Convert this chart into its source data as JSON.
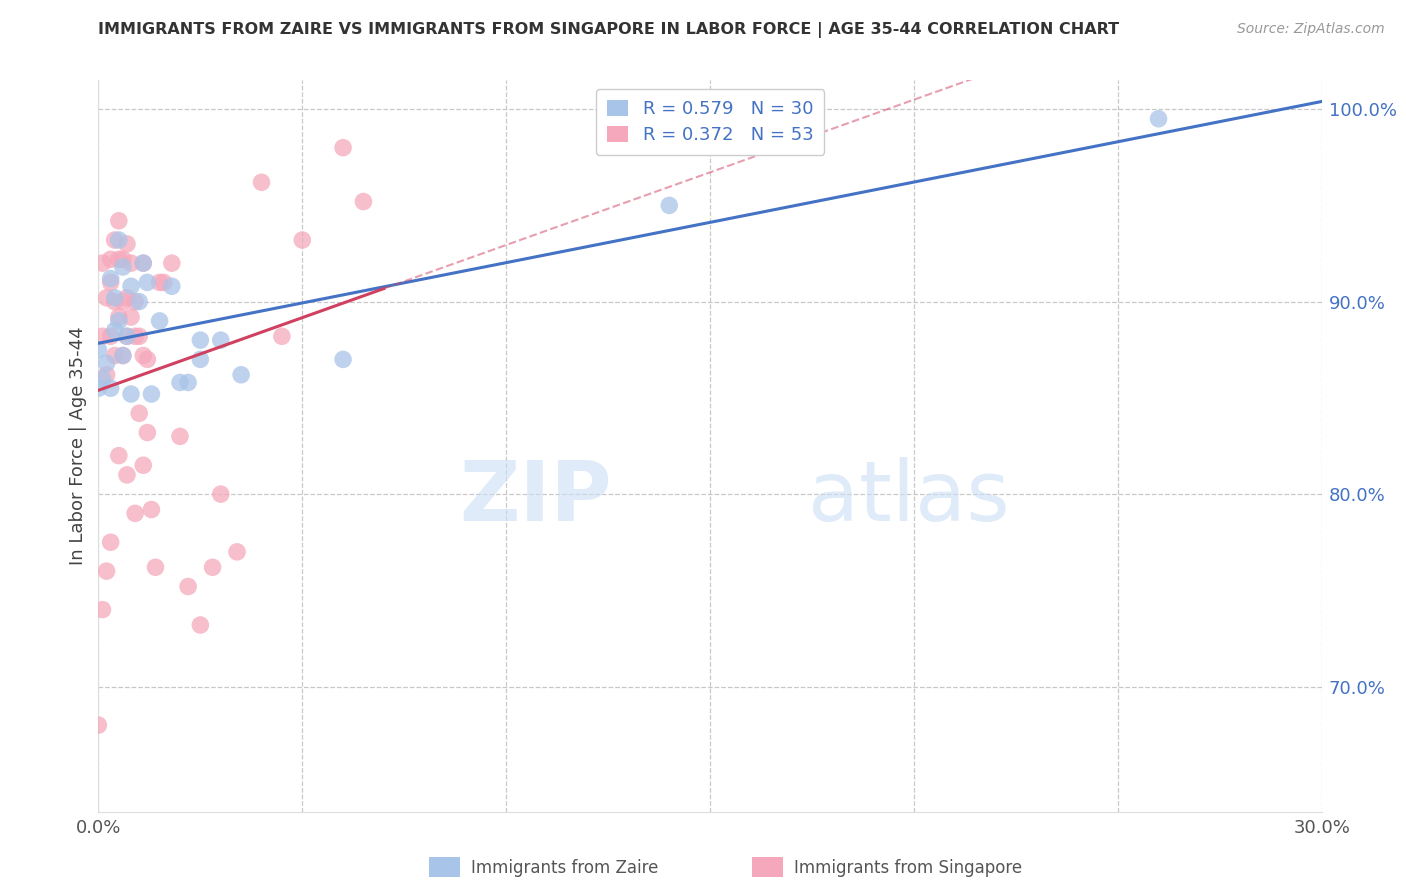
{
  "title": "IMMIGRANTS FROM ZAIRE VS IMMIGRANTS FROM SINGAPORE IN LABOR FORCE | AGE 35-44 CORRELATION CHART",
  "source": "Source: ZipAtlas.com",
  "ylabel": "In Labor Force | Age 35-44",
  "xlim": [
    0.0,
    0.3
  ],
  "ylim": [
    0.635,
    1.015
  ],
  "yticks": [
    0.7,
    0.8,
    0.9,
    1.0
  ],
  "ytick_labels": [
    "70.0%",
    "80.0%",
    "90.0%",
    "100.0%"
  ],
  "xticks": [
    0.0,
    0.05,
    0.1,
    0.15,
    0.2,
    0.25,
    0.3
  ],
  "zaire_R": 0.579,
  "zaire_N": 30,
  "singapore_R": 0.372,
  "singapore_N": 53,
  "zaire_color": "#a8c4e8",
  "singapore_color": "#f5a8bb",
  "trend_zaire_color": "#4472c4",
  "trend_singapore_color": "#d04060",
  "watermark_zip": "ZIP",
  "watermark_atlas": "atlas",
  "legend_label_zaire": "Immigrants from Zaire",
  "legend_label_singapore": "Immigrants from Singapore",
  "zaire_x": [
    0.0,
    0.0,
    0.001,
    0.002,
    0.003,
    0.003,
    0.004,
    0.004,
    0.005,
    0.005,
    0.006,
    0.006,
    0.007,
    0.008,
    0.008,
    0.01,
    0.011,
    0.012,
    0.013,
    0.015,
    0.018,
    0.02,
    0.022,
    0.025,
    0.025,
    0.03,
    0.035,
    0.06,
    0.14,
    0.26
  ],
  "zaire_y": [
    0.855,
    0.875,
    0.86,
    0.868,
    0.855,
    0.912,
    0.885,
    0.902,
    0.89,
    0.932,
    0.872,
    0.918,
    0.882,
    0.908,
    0.852,
    0.9,
    0.92,
    0.91,
    0.852,
    0.89,
    0.908,
    0.858,
    0.858,
    0.87,
    0.88,
    0.88,
    0.862,
    0.87,
    0.95,
    0.995
  ],
  "singapore_x": [
    0.0,
    0.001,
    0.001,
    0.002,
    0.002,
    0.003,
    0.003,
    0.003,
    0.004,
    0.004,
    0.004,
    0.005,
    0.005,
    0.005,
    0.006,
    0.006,
    0.006,
    0.007,
    0.007,
    0.007,
    0.008,
    0.008,
    0.009,
    0.009,
    0.01,
    0.01,
    0.011,
    0.011,
    0.012,
    0.012,
    0.013,
    0.014,
    0.015,
    0.016,
    0.018,
    0.02,
    0.022,
    0.025,
    0.028,
    0.03,
    0.034,
    0.04,
    0.045,
    0.05,
    0.06,
    0.065,
    0.001,
    0.002,
    0.003,
    0.005,
    0.007,
    0.009,
    0.011
  ],
  "singapore_y": [
    0.68,
    0.882,
    0.92,
    0.862,
    0.902,
    0.882,
    0.91,
    0.922,
    0.872,
    0.9,
    0.932,
    0.892,
    0.922,
    0.942,
    0.872,
    0.9,
    0.922,
    0.882,
    0.902,
    0.93,
    0.892,
    0.92,
    0.9,
    0.882,
    0.842,
    0.882,
    0.92,
    0.872,
    0.832,
    0.87,
    0.792,
    0.762,
    0.91,
    0.91,
    0.92,
    0.83,
    0.752,
    0.732,
    0.762,
    0.8,
    0.77,
    0.962,
    0.882,
    0.932,
    0.98,
    0.952,
    0.74,
    0.76,
    0.775,
    0.82,
    0.81,
    0.79,
    0.815
  ]
}
